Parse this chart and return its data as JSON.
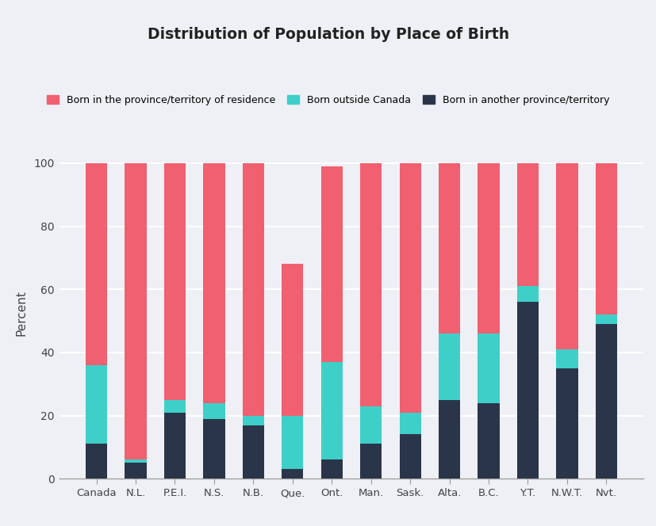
{
  "title": "Distribution of Population by Place of Birth",
  "categories": [
    "Canada",
    "N.L.",
    "P.E.I.",
    "N.S.",
    "N.B.",
    "Que.",
    "Ont.",
    "Man.",
    "Sask.",
    "Alta.",
    "B.C.",
    "Y.T.",
    "N.W.T.",
    "Nvt."
  ],
  "born_in_province": [
    64,
    94,
    75,
    76,
    80,
    48,
    62,
    77,
    79,
    54,
    54,
    39,
    59,
    48
  ],
  "born_outside_canada": [
    25,
    1,
    4,
    5,
    3,
    17,
    31,
    12,
    7,
    21,
    22,
    5,
    6,
    3
  ],
  "born_in_another": [
    11,
    5,
    21,
    19,
    17,
    3,
    6,
    11,
    14,
    25,
    24,
    56,
    35,
    49
  ],
  "color_province": "#f16070",
  "color_outside": "#3ecfc9",
  "color_another": "#2b3549",
  "ylabel": "Percent",
  "ylim_max": 105,
  "plot_bg_color": "#eef0f5",
  "outer_bg_color": "#eef0f5",
  "title_color": "#222222",
  "legend_labels": [
    "Born in the province/territory of residence",
    "Born outside Canada",
    "Born in another province/territory"
  ]
}
